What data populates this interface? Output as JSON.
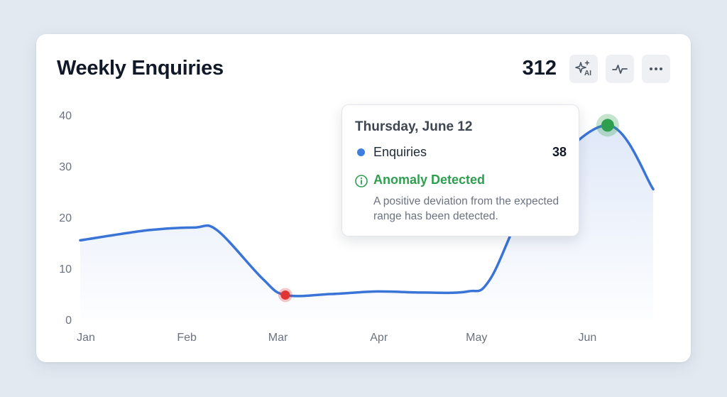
{
  "card": {
    "title": "Weekly Enquiries",
    "total": "312"
  },
  "toolbar": {
    "ai_label": "AI",
    "buttons": [
      "sparkle-ai-icon",
      "pulse-icon",
      "more-icon"
    ]
  },
  "tooltip": {
    "date": "Thursday, June 12",
    "series_name": "Enquiries",
    "value": "38",
    "anomaly_title": "Anomaly Detected",
    "anomaly_desc": "A positive deviation from the expected range has been detected."
  },
  "colors": {
    "line": "#3a74d6",
    "low_anomaly": "#e03535",
    "high_anomaly": "#2e9e4f",
    "accent_green": "#2e9e4f"
  },
  "chart_data": {
    "type": "line",
    "title": "Weekly Enquiries",
    "x_tick_labels": [
      "Jan",
      "Feb",
      "Mar",
      "Apr",
      "May",
      "Jun"
    ],
    "y_ticks": [
      0,
      10,
      20,
      30,
      40
    ],
    "ylim": [
      0,
      40
    ],
    "grid": false,
    "area_fill": true,
    "series": [
      {
        "name": "Enquiries",
        "points": [
          {
            "x": "2025-01-01",
            "y": 15.5
          },
          {
            "x": "2025-01-22",
            "y": 17.5
          },
          {
            "x": "2025-02-05",
            "y": 18
          },
          {
            "x": "2025-02-12",
            "y": 17.5
          },
          {
            "x": "2025-02-26",
            "y": 8
          },
          {
            "x": "2025-03-05",
            "y": 4.8
          },
          {
            "x": "2025-03-19",
            "y": 5
          },
          {
            "x": "2025-04-02",
            "y": 5.5
          },
          {
            "x": "2025-04-16",
            "y": 5.3
          },
          {
            "x": "2025-04-30",
            "y": 5.5
          },
          {
            "x": "2025-05-07",
            "y": 8
          },
          {
            "x": "2025-05-21",
            "y": 26
          },
          {
            "x": "2025-06-12",
            "y": 38
          },
          {
            "x": "2025-06-26",
            "y": 25.5
          }
        ]
      }
    ],
    "anomalies": [
      {
        "x": "2025-03-05",
        "y": 4.8,
        "kind": "negative"
      },
      {
        "x": "2025-06-12",
        "y": 38,
        "kind": "positive"
      }
    ]
  }
}
